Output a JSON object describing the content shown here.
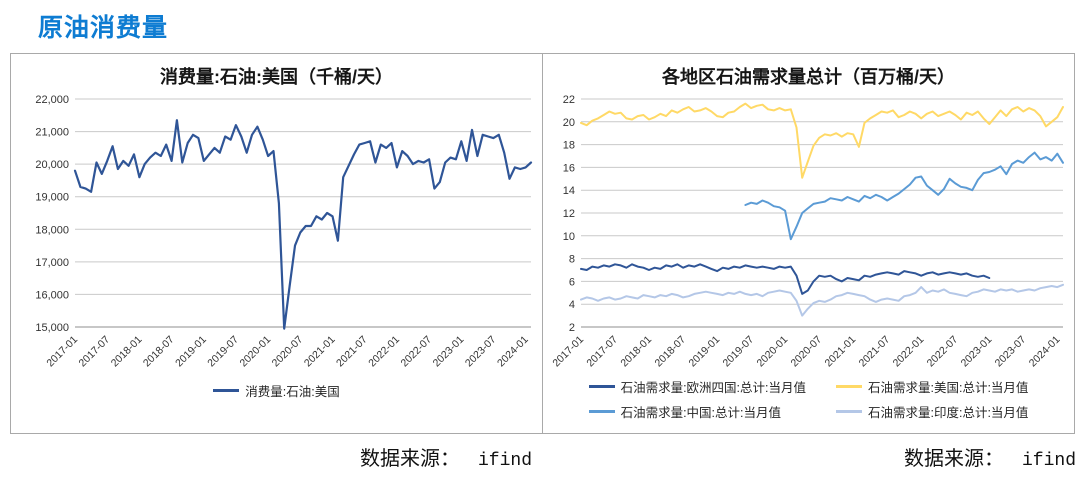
{
  "page": {
    "title": "原油消费量",
    "title_color": "#0e7cd2"
  },
  "sources": {
    "left": {
      "label": "数据来源：",
      "value": "ifind"
    },
    "right": {
      "label": "数据来源：",
      "value": "ifind"
    }
  },
  "chart_data": [
    {
      "type": "line",
      "title": "消费量:石油:美国（千桶/天）",
      "xlabel": "",
      "ylabel": "",
      "ylim": [
        15000,
        22000
      ],
      "ystep": 1000,
      "y_format": "comma",
      "grid": true,
      "legend_position": "bottom",
      "x_start": "2017-01",
      "x_freq": "monthly",
      "x_tick_every": 6,
      "x_tick_labels": [
        "2017-01",
        "2017-07",
        "2018-01",
        "2018-07",
        "2019-01",
        "2019-07",
        "2020-01",
        "2020-07",
        "2021-01",
        "2021-07",
        "2022-01",
        "2022-07",
        "2023-01",
        "2023-07",
        "2024-01"
      ],
      "y_tick_labels": [
        "15,000",
        "16,000",
        "17,000",
        "18,000",
        "19,000",
        "20,000",
        "21,000",
        "22,000"
      ],
      "series": [
        {
          "name": "消费量:石油:美国",
          "color": "#2F5597",
          "width": 2.2,
          "values": [
            19800,
            19300,
            19250,
            19150,
            20050,
            19700,
            20100,
            20550,
            19850,
            20100,
            19950,
            20300,
            19600,
            20000,
            20200,
            20350,
            20250,
            20600,
            20100,
            21350,
            20050,
            20650,
            20900,
            20800,
            20100,
            20300,
            20500,
            20350,
            20850,
            20750,
            21200,
            20850,
            20350,
            20900,
            21150,
            20750,
            20250,
            20400,
            18800,
            14950,
            16250,
            17500,
            17900,
            18100,
            18100,
            18400,
            18300,
            18500,
            18400,
            17650,
            19600,
            19950,
            20300,
            20600,
            20650,
            20700,
            20050,
            20600,
            20500,
            20650,
            19900,
            20400,
            20250,
            20000,
            20100,
            20050,
            20150,
            19250,
            19450,
            20050,
            20200,
            20150,
            20700,
            20100,
            21050,
            20250,
            20900,
            20850,
            20800,
            20900,
            20350,
            19550,
            19900,
            19850,
            19900,
            20050
          ]
        }
      ]
    },
    {
      "type": "line",
      "title": "各地区石油需求量总计（百万桶/天）",
      "xlabel": "",
      "ylabel": "",
      "ylim": [
        2,
        22
      ],
      "ystep": 2,
      "y_format": "plain",
      "grid": true,
      "legend_position": "bottom",
      "x_start": "2017-01",
      "x_freq": "monthly",
      "x_tick_every": 6,
      "x_tick_labels": [
        "2017-01",
        "2017-07",
        "2018-01",
        "2018-07",
        "2019-01",
        "2019-07",
        "2020-01",
        "2020-07",
        "2021-01",
        "2021-07",
        "2022-01",
        "2022-07",
        "2023-01",
        "2023-07",
        "2024-01"
      ],
      "y_tick_labels": [
        "2",
        "4",
        "6",
        "8",
        "10",
        "12",
        "14",
        "16",
        "18",
        "20",
        "22"
      ],
      "series": [
        {
          "name": "石油需求量:欧洲四国:总计:当月值",
          "color": "#2F5597",
          "width": 2,
          "values": [
            7.1,
            7.0,
            7.3,
            7.2,
            7.4,
            7.3,
            7.5,
            7.4,
            7.2,
            7.5,
            7.3,
            7.2,
            7.0,
            7.2,
            7.1,
            7.4,
            7.3,
            7.5,
            7.2,
            7.4,
            7.3,
            7.5,
            7.3,
            7.1,
            6.9,
            7.2,
            7.1,
            7.3,
            7.2,
            7.4,
            7.3,
            7.2,
            7.3,
            7.2,
            7.1,
            7.3,
            7.2,
            7.3,
            6.5,
            4.9,
            5.2,
            6.0,
            6.5,
            6.4,
            6.5,
            6.2,
            6.0,
            6.3,
            6.2,
            6.1,
            6.5,
            6.4,
            6.6,
            6.7,
            6.8,
            6.7,
            6.6,
            6.9,
            6.8,
            6.7,
            6.5,
            6.7,
            6.8,
            6.6,
            6.7,
            6.8,
            6.7,
            6.6,
            6.7,
            6.5,
            6.4,
            6.5,
            6.3,
            null,
            null,
            null,
            null,
            null,
            null,
            null,
            null,
            null,
            null,
            null,
            null,
            null
          ]
        },
        {
          "name": "石油需求量:美国:总计:当月值",
          "color": "#FFD966",
          "width": 2,
          "values": [
            19.9,
            19.7,
            20.1,
            20.3,
            20.6,
            20.9,
            20.7,
            20.8,
            20.3,
            20.2,
            20.5,
            20.6,
            20.2,
            20.4,
            20.7,
            20.5,
            21.0,
            20.8,
            21.1,
            21.3,
            20.9,
            21.0,
            21.2,
            20.9,
            20.5,
            20.4,
            20.8,
            20.9,
            21.3,
            21.6,
            21.2,
            21.4,
            21.5,
            21.1,
            21.0,
            21.2,
            21.0,
            21.1,
            19.5,
            15.1,
            16.5,
            17.9,
            18.6,
            18.9,
            18.8,
            19.0,
            18.7,
            19.0,
            18.9,
            17.8,
            19.9,
            20.3,
            20.6,
            20.9,
            20.8,
            21.0,
            20.4,
            20.6,
            20.9,
            20.7,
            20.3,
            20.7,
            20.9,
            20.5,
            20.7,
            20.9,
            20.6,
            20.2,
            20.8,
            20.6,
            20.9,
            20.3,
            19.8,
            20.4,
            21.0,
            20.5,
            21.1,
            21.3,
            20.9,
            21.2,
            21.0,
            20.5,
            19.6,
            20.0,
            20.4,
            21.3
          ]
        },
        {
          "name": "石油需求量:中国:总计:当月值",
          "color": "#5B9BD5",
          "width": 2,
          "values": [
            null,
            null,
            null,
            null,
            null,
            null,
            null,
            null,
            null,
            null,
            null,
            null,
            null,
            null,
            null,
            null,
            null,
            null,
            null,
            null,
            null,
            null,
            null,
            null,
            null,
            null,
            null,
            null,
            null,
            12.7,
            12.9,
            12.8,
            13.1,
            12.9,
            12.6,
            12.5,
            12.2,
            9.7,
            10.8,
            12.0,
            12.4,
            12.8,
            12.9,
            13.0,
            13.3,
            13.2,
            13.1,
            13.4,
            13.2,
            13.0,
            13.5,
            13.3,
            13.6,
            13.4,
            13.1,
            13.4,
            13.7,
            14.1,
            14.5,
            15.1,
            15.2,
            14.4,
            14.0,
            13.6,
            14.1,
            15.0,
            14.6,
            14.3,
            14.2,
            14.0,
            14.9,
            15.5,
            15.6,
            15.8,
            16.1,
            15.4,
            16.3,
            16.6,
            16.4,
            16.9,
            17.3,
            16.7,
            16.9,
            16.6,
            17.2,
            16.4
          ]
        },
        {
          "name": "石油需求量:印度:总计:当月值",
          "color": "#B4C7E7",
          "width": 2,
          "values": [
            4.4,
            4.6,
            4.5,
            4.3,
            4.5,
            4.6,
            4.4,
            4.5,
            4.7,
            4.6,
            4.5,
            4.8,
            4.7,
            4.6,
            4.8,
            4.7,
            4.9,
            4.8,
            4.6,
            4.7,
            4.9,
            5.0,
            5.1,
            5.0,
            4.9,
            4.8,
            5.0,
            4.9,
            5.1,
            4.9,
            4.8,
            4.9,
            4.7,
            5.0,
            5.1,
            5.2,
            5.1,
            5.0,
            4.3,
            3.0,
            3.6,
            4.1,
            4.3,
            4.2,
            4.4,
            4.7,
            4.8,
            5.0,
            4.9,
            4.8,
            4.7,
            4.4,
            4.2,
            4.4,
            4.5,
            4.4,
            4.3,
            4.7,
            4.8,
            5.0,
            5.5,
            5.0,
            5.2,
            5.1,
            5.3,
            5.0,
            4.9,
            4.8,
            4.7,
            5.0,
            5.1,
            5.3,
            5.2,
            5.1,
            5.3,
            5.2,
            5.3,
            5.1,
            5.2,
            5.3,
            5.2,
            5.4,
            5.5,
            5.6,
            5.5,
            5.7
          ]
        }
      ]
    }
  ]
}
